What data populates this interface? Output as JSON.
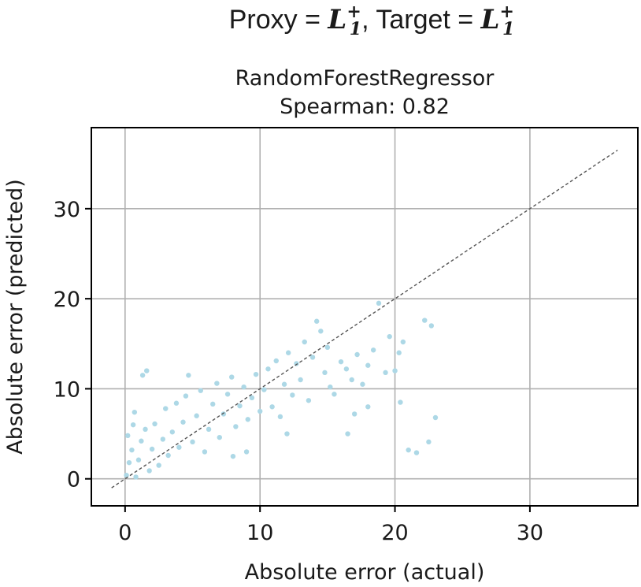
{
  "figure": {
    "suptitle_proxy_prefix": "Proxy = ",
    "suptitle_target_prefix": ", Target = ",
    "suptitle_metric_base": "L",
    "suptitle_metric_sup": "+",
    "suptitle_metric_sub": "1"
  },
  "chart_data": {
    "type": "scatter",
    "title": "RandomForestRegressor",
    "subtitle": "Spearman: 0.82",
    "xlabel": "Absolute error (actual)",
    "ylabel": "Absolute error (predicted)",
    "xlim": [
      -2.5,
      38
    ],
    "ylim": [
      -3,
      39
    ],
    "xticks": [
      0,
      10,
      20,
      30
    ],
    "yticks": [
      0,
      10,
      20,
      30
    ],
    "grid": true,
    "point_color": "#add8e6",
    "reference_line": {
      "style": "dashed",
      "color": "#555555",
      "from": [
        -1,
        -1
      ],
      "to": [
        36.5,
        36.5
      ]
    },
    "series": [
      {
        "values_xy": [
          [
            0.1,
            0.4
          ],
          [
            0.3,
            1.8
          ],
          [
            0.5,
            3.2
          ],
          [
            0.2,
            4.8
          ],
          [
            0.6,
            6.0
          ],
          [
            0.8,
            0.2
          ],
          [
            1.0,
            2.1
          ],
          [
            1.2,
            4.2
          ],
          [
            1.5,
            5.5
          ],
          [
            0.7,
            7.4
          ],
          [
            1.3,
            11.5
          ],
          [
            1.6,
            12.0
          ],
          [
            1.8,
            0.9
          ],
          [
            2.0,
            3.3
          ],
          [
            2.2,
            6.1
          ],
          [
            2.5,
            1.5
          ],
          [
            2.8,
            4.4
          ],
          [
            3.0,
            7.8
          ],
          [
            3.2,
            2.6
          ],
          [
            3.5,
            5.2
          ],
          [
            3.8,
            8.4
          ],
          [
            4.0,
            3.5
          ],
          [
            4.3,
            6.3
          ],
          [
            4.5,
            9.2
          ],
          [
            4.7,
            11.5
          ],
          [
            5.0,
            4.1
          ],
          [
            5.3,
            7.0
          ],
          [
            5.6,
            9.8
          ],
          [
            5.9,
            3.0
          ],
          [
            6.2,
            5.5
          ],
          [
            6.5,
            8.3
          ],
          [
            6.8,
            10.6
          ],
          [
            7.0,
            4.6
          ],
          [
            7.3,
            7.2
          ],
          [
            7.6,
            9.4
          ],
          [
            7.9,
            11.3
          ],
          [
            8.2,
            5.8
          ],
          [
            8.5,
            8.1
          ],
          [
            8.8,
            10.2
          ],
          [
            9.1,
            6.6
          ],
          [
            9.4,
            9.0
          ],
          [
            9.7,
            11.6
          ],
          [
            10.0,
            7.5
          ],
          [
            10.3,
            9.9
          ],
          [
            10.6,
            12.2
          ],
          [
            10.9,
            8.0
          ],
          [
            11.2,
            13.1
          ],
          [
            11.5,
            6.9
          ],
          [
            11.8,
            10.5
          ],
          [
            12.1,
            14.0
          ],
          [
            12.4,
            9.3
          ],
          [
            12.7,
            12.8
          ],
          [
            13.0,
            11.0
          ],
          [
            13.3,
            15.2
          ],
          [
            13.6,
            8.7
          ],
          [
            13.9,
            13.5
          ],
          [
            14.2,
            17.5
          ],
          [
            14.5,
            16.4
          ],
          [
            14.8,
            11.8
          ],
          [
            15.0,
            14.6
          ],
          [
            15.2,
            10.2
          ],
          [
            15.5,
            9.4
          ],
          [
            16.0,
            13.0
          ],
          [
            16.4,
            12.2
          ],
          [
            16.8,
            11.0
          ],
          [
            17.2,
            13.8
          ],
          [
            17.6,
            10.5
          ],
          [
            18.0,
            12.6
          ],
          [
            18.4,
            14.3
          ],
          [
            18.8,
            19.5
          ],
          [
            19.3,
            11.8
          ],
          [
            19.6,
            15.8
          ],
          [
            20.0,
            12.0
          ],
          [
            20.3,
            14.0
          ],
          [
            20.6,
            15.2
          ],
          [
            21.0,
            3.2
          ],
          [
            21.6,
            2.9
          ],
          [
            22.2,
            17.6
          ],
          [
            22.7,
            17.0
          ],
          [
            23.0,
            6.8
          ],
          [
            22.5,
            4.1
          ],
          [
            20.4,
            8.5
          ],
          [
            18.0,
            8.0
          ],
          [
            17.0,
            7.2
          ],
          [
            16.5,
            5.0
          ],
          [
            12.0,
            5.0
          ],
          [
            9.0,
            3.0
          ],
          [
            8.0,
            2.5
          ]
        ]
      }
    ]
  }
}
